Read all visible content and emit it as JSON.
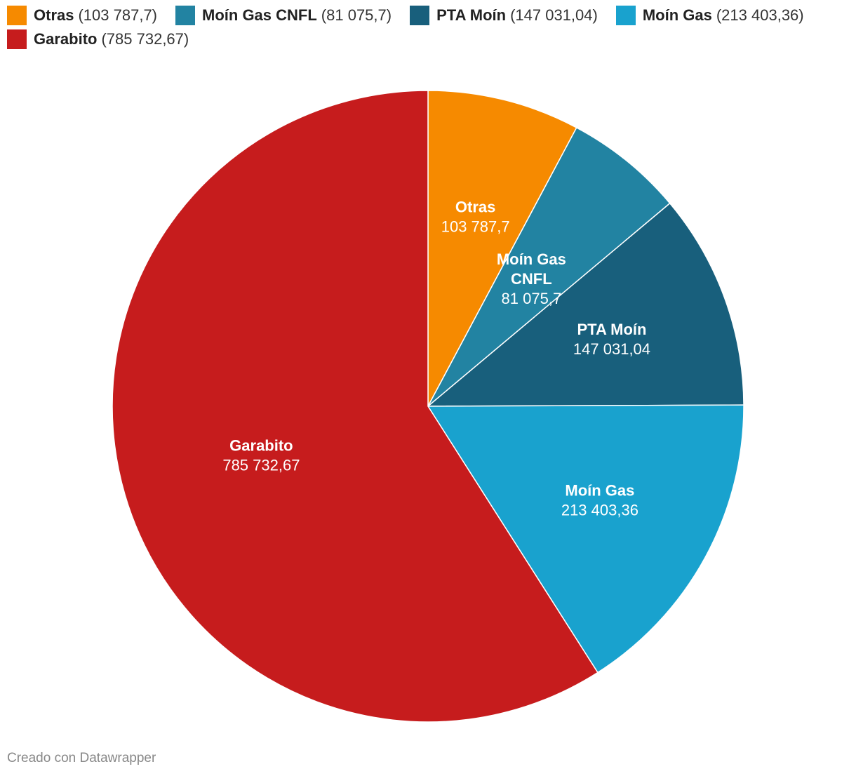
{
  "chart_data": {
    "type": "pie",
    "categories": [
      "Otras",
      "Moín Gas CNFL",
      "PTA Moín",
      "Moín Gas",
      "Garabito"
    ],
    "values": [
      103787.7,
      81075.7,
      147031.04,
      213403.36,
      785732.67
    ],
    "value_labels": [
      "103 787,7",
      "81 075,7",
      "147 031,04",
      "213 403,36",
      "785 732,67"
    ],
    "legend_values": [
      "(103 787,7)",
      "(81 075,7)",
      "(147 031,04)",
      "(213 403,36)",
      "(785 732,67)"
    ],
    "colors": [
      "#f68a00",
      "#2283a2",
      "#185f7c",
      "#19a2ce",
      "#c61c1d"
    ],
    "legend_placement": "top-left",
    "start_angle": "12 o'clock, clockwise",
    "title": "",
    "xlabel": "",
    "ylabel": ""
  },
  "footer": {
    "credit": "Creado con Datawrapper"
  }
}
